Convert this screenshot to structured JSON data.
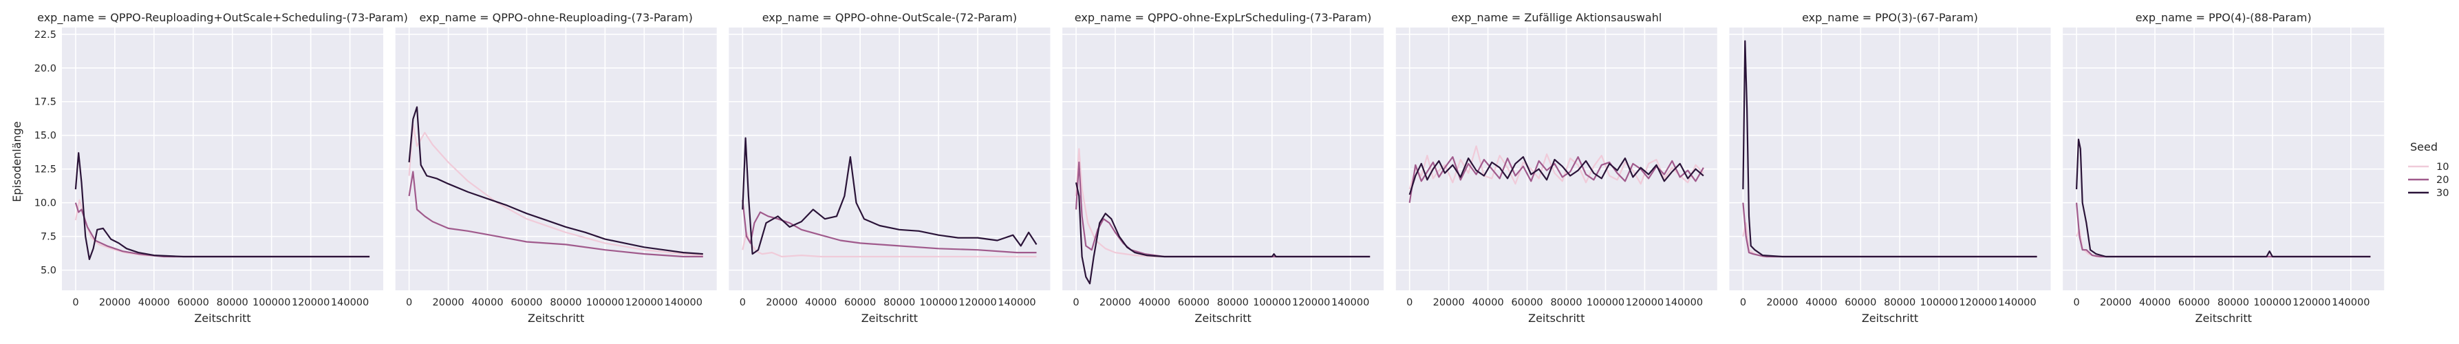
{
  "chart_data": {
    "type": "line",
    "ylabel": "Episodenlänge",
    "xlabel": "Zeitschritt",
    "xlim": [
      -7000,
      157000
    ],
    "ylim": [
      3.5,
      23.0
    ],
    "x_ticks": [
      0,
      20000,
      40000,
      60000,
      80000,
      100000,
      120000,
      140000
    ],
    "x_tick_labels": [
      "0",
      "20000",
      "40000",
      "60000",
      "80000",
      "100000",
      "120000",
      "140000"
    ],
    "y_ticks": [
      5.0,
      7.5,
      10.0,
      12.5,
      15.0,
      17.5,
      20.0,
      22.5
    ],
    "y_tick_labels": [
      "5.0",
      "7.5",
      "10.0",
      "12.5",
      "15.0",
      "17.5",
      "20.0",
      "22.5"
    ],
    "grid": true,
    "legend": {
      "title": "Seed",
      "placement": "right",
      "entries": [
        {
          "label": "10",
          "color": "#f0cbd9"
        },
        {
          "label": "20",
          "color": "#a05a8c"
        },
        {
          "label": "30",
          "color": "#2a1338"
        }
      ]
    },
    "panels": [
      {
        "title": "exp_name = QPPO-Reuploading+OutScale+Scheduling-(73-Param)",
        "series": [
          {
            "name": "10",
            "x": [
              0,
              2000,
              5000,
              8000,
              12000,
              18000,
              25000,
              35000,
              50000,
              80000,
              150000
            ],
            "y": [
              8.7,
              10.2,
              8.6,
              7.4,
              6.9,
              6.6,
              6.3,
              6.1,
              6.0,
              6.0,
              6.0
            ]
          },
          {
            "name": "20",
            "x": [
              0,
              1500,
              3000,
              6000,
              10000,
              16000,
              24000,
              32000,
              45000,
              80000,
              150000
            ],
            "y": [
              10.0,
              9.3,
              9.5,
              8.2,
              7.2,
              6.8,
              6.4,
              6.2,
              6.0,
              6.0,
              6.0
            ]
          },
          {
            "name": "30",
            "x": [
              0,
              1500,
              3000,
              5000,
              7000,
              9000,
              11000,
              14000,
              18000,
              22000,
              26000,
              32000,
              40000,
              55000,
              150000
            ],
            "y": [
              11.0,
              13.7,
              11.5,
              7.5,
              5.8,
              6.6,
              8.0,
              8.1,
              7.3,
              7.0,
              6.6,
              6.3,
              6.1,
              6.0,
              6.0
            ]
          }
        ]
      },
      {
        "title": "exp_name = QPPO-ohne-Reuploading-(73-Param)",
        "series": [
          {
            "name": "10",
            "x": [
              0,
              2000,
              4000,
              8000,
              12000,
              20000,
              30000,
              45000,
              60000,
              80000,
              100000,
              120000,
              140000,
              150000
            ],
            "y": [
              12.0,
              15.8,
              14.2,
              15.2,
              14.3,
              13.0,
              11.6,
              10.0,
              8.8,
              7.8,
              7.0,
              6.5,
              6.2,
              6.1
            ]
          },
          {
            "name": "20",
            "x": [
              0,
              2000,
              4000,
              8000,
              12000,
              20000,
              30000,
              45000,
              60000,
              80000,
              100000,
              120000,
              140000,
              150000
            ],
            "y": [
              10.5,
              12.3,
              9.5,
              9.0,
              8.6,
              8.1,
              7.9,
              7.5,
              7.1,
              6.9,
              6.5,
              6.2,
              6.0,
              6.0
            ]
          },
          {
            "name": "30",
            "x": [
              0,
              2000,
              4000,
              6000,
              9000,
              14000,
              20000,
              30000,
              40000,
              50000,
              60000,
              70000,
              80000,
              90000,
              100000,
              110000,
              120000,
              130000,
              140000,
              150000
            ],
            "y": [
              13.0,
              16.2,
              17.1,
              12.8,
              12.0,
              11.8,
              11.4,
              10.8,
              10.3,
              9.8,
              9.2,
              8.7,
              8.2,
              7.8,
              7.3,
              7.0,
              6.7,
              6.5,
              6.3,
              6.2
            ]
          }
        ]
      },
      {
        "title": "exp_name = QPPO-ohne-OutScale-(72-Param)",
        "series": [
          {
            "name": "10",
            "x": [
              0,
              2000,
              4000,
              7000,
              10000,
              15000,
              20000,
              30000,
              40000,
              60000,
              80000,
              100000,
              120000,
              140000,
              150000
            ],
            "y": [
              6.5,
              7.8,
              7.0,
              6.4,
              6.2,
              6.3,
              6.0,
              6.1,
              6.0,
              6.0,
              6.0,
              6.0,
              6.0,
              6.0,
              6.0
            ]
          },
          {
            "name": "20",
            "x": [
              0,
              2000,
              4000,
              6000,
              9000,
              13000,
              18000,
              24000,
              30000,
              40000,
              50000,
              60000,
              70000,
              80000,
              100000,
              120000,
              140000,
              150000
            ],
            "y": [
              10.2,
              7.5,
              7.0,
              8.5,
              9.3,
              9.0,
              8.8,
              8.5,
              8.0,
              7.6,
              7.2,
              7.0,
              6.9,
              6.8,
              6.6,
              6.5,
              6.3,
              6.3
            ]
          },
          {
            "name": "30",
            "x": [
              0,
              1500,
              3000,
              5000,
              8000,
              12000,
              18000,
              24000,
              30000,
              36000,
              42000,
              48000,
              52000,
              55000,
              58000,
              62000,
              70000,
              80000,
              90000,
              100000,
              110000,
              120000,
              130000,
              138000,
              142000,
              146000,
              150000
            ],
            "y": [
              9.5,
              14.8,
              10.5,
              6.2,
              6.5,
              8.5,
              9.0,
              8.2,
              8.6,
              9.5,
              8.8,
              9.0,
              10.5,
              13.4,
              10.0,
              8.8,
              8.3,
              8.0,
              7.9,
              7.6,
              7.4,
              7.4,
              7.2,
              7.6,
              6.8,
              7.8,
              6.9
            ]
          }
        ]
      },
      {
        "title": "exp_name = QPPO-ohne-ExpLrScheduling-(73-Param)",
        "series": [
          {
            "name": "10",
            "x": [
              0,
              1500,
              3000,
              6000,
              10000,
              15000,
              20000,
              30000,
              40000,
              60000,
              150000
            ],
            "y": [
              10.5,
              14.0,
              11.0,
              8.5,
              7.2,
              6.6,
              6.3,
              6.1,
              6.0,
              6.0,
              6.0
            ]
          },
          {
            "name": "20",
            "x": [
              0,
              1500,
              3000,
              5000,
              8000,
              11000,
              14000,
              17000,
              20000,
              24000,
              28000,
              35000,
              45000,
              60000,
              150000
            ],
            "y": [
              9.5,
              13.0,
              9.0,
              6.8,
              6.5,
              8.0,
              8.8,
              8.5,
              7.8,
              7.0,
              6.5,
              6.2,
              6.0,
              6.0,
              6.0
            ]
          },
          {
            "name": "30",
            "x": [
              0,
              1500,
              3000,
              5000,
              7000,
              9000,
              12000,
              15000,
              18000,
              22000,
              26000,
              30000,
              36000,
              45000,
              60000,
              100000,
              101000,
              102000,
              150000
            ],
            "y": [
              11.5,
              10.5,
              6.0,
              4.5,
              4.0,
              6.0,
              8.5,
              9.2,
              8.8,
              7.5,
              6.7,
              6.3,
              6.1,
              6.0,
              6.0,
              6.0,
              6.2,
              6.0,
              6.0
            ]
          }
        ]
      },
      {
        "title": "exp_name = Zufällige Aktionsauswahl",
        "series": [
          {
            "name": "10",
            "x": [
              0,
              3000,
              6000,
              9000,
              12000,
              15000,
              18000,
              22000,
              26000,
              30000,
              34000,
              38000,
              42000,
              46000,
              50000,
              54000,
              58000,
              62000,
              66000,
              70000,
              74000,
              78000,
              82000,
              86000,
              90000,
              94000,
              98000,
              102000,
              106000,
              110000,
              114000,
              118000,
              122000,
              126000,
              130000,
              134000,
              138000,
              142000,
              146000,
              150000
            ],
            "y": [
              11.0,
              12.5,
              12.0,
              13.5,
              11.8,
              12.4,
              12.8,
              11.5,
              13.2,
              12.2,
              14.2,
              12.0,
              11.8,
              13.5,
              12.6,
              11.4,
              13.0,
              12.5,
              11.8,
              13.6,
              12.2,
              11.6,
              13.3,
              12.8,
              11.5,
              12.7,
              13.5,
              12.0,
              11.7,
              13.0,
              12.4,
              11.4,
              12.9,
              13.2,
              11.8,
              12.6,
              12.0,
              11.5,
              12.8,
              12.2
            ]
          },
          {
            "name": "20",
            "x": [
              0,
              3000,
              6000,
              9000,
              12000,
              15000,
              18000,
              22000,
              26000,
              30000,
              34000,
              38000,
              42000,
              46000,
              50000,
              54000,
              58000,
              62000,
              66000,
              70000,
              74000,
              78000,
              82000,
              86000,
              90000,
              94000,
              98000,
              102000,
              106000,
              110000,
              114000,
              118000,
              122000,
              126000,
              130000,
              134000,
              138000,
              142000,
              146000,
              150000
            ],
            "y": [
              10.0,
              12.8,
              11.6,
              12.3,
              13.0,
              11.9,
              12.6,
              13.4,
              11.7,
              12.9,
              12.1,
              13.2,
              12.5,
              11.8,
              13.3,
              12.0,
              12.7,
              11.6,
              13.1,
              12.4,
              12.9,
              11.9,
              12.3,
              13.4,
              12.1,
              11.7,
              12.8,
              13.0,
              12.2,
              11.6,
              12.9,
              12.5,
              11.8,
              12.7,
              12.1,
              13.1,
              11.9,
              12.4,
              11.6,
              12.6
            ]
          },
          {
            "name": "30",
            "x": [
              0,
              3000,
              6000,
              9000,
              12000,
              15000,
              18000,
              22000,
              26000,
              30000,
              34000,
              38000,
              42000,
              46000,
              50000,
              54000,
              58000,
              62000,
              66000,
              70000,
              74000,
              78000,
              82000,
              86000,
              90000,
              94000,
              98000,
              102000,
              106000,
              110000,
              114000,
              118000,
              122000,
              126000,
              130000,
              134000,
              138000,
              142000,
              146000,
              150000
            ],
            "y": [
              10.6,
              12.0,
              12.9,
              11.7,
              12.5,
              13.1,
              12.2,
              12.8,
              11.9,
              13.3,
              12.4,
              12.0,
              13.0,
              12.6,
              11.8,
              12.9,
              13.4,
              12.1,
              12.5,
              11.7,
              13.2,
              12.7,
              12.0,
              12.4,
              13.1,
              12.2,
              11.8,
              12.9,
              12.4,
              13.3,
              11.9,
              12.6,
              12.1,
              12.8,
              11.6,
              12.3,
              12.9,
              11.8,
              12.5,
              12.0
            ]
          }
        ]
      },
      {
        "title": "exp_name = PPO(3)-(67-Param)",
        "series": [
          {
            "name": "10",
            "x": [
              0,
              1500,
              3000,
              6000,
              10000,
              15000,
              25000,
              150000
            ],
            "y": [
              7.5,
              8.5,
              6.5,
              6.2,
              6.0,
              6.0,
              6.0,
              6.0
            ]
          },
          {
            "name": "20",
            "x": [
              0,
              1500,
              3000,
              5000,
              8000,
              12000,
              20000,
              150000
            ],
            "y": [
              10.0,
              7.5,
              6.3,
              6.2,
              6.1,
              6.0,
              6.0,
              6.0
            ]
          },
          {
            "name": "30",
            "x": [
              0,
              1000,
              2000,
              3000,
              4000,
              6000,
              10000,
              20000,
              150000
            ],
            "y": [
              11.0,
              22.0,
              17.0,
              9.0,
              6.8,
              6.5,
              6.1,
              6.0,
              6.0
            ]
          }
        ]
      },
      {
        "title": "exp_name = PPO(4)-(88-Param)",
        "series": [
          {
            "name": "10",
            "x": [
              0,
              1500,
              3000,
              6000,
              10000,
              15000,
              25000,
              150000
            ],
            "y": [
              7.5,
              8.0,
              6.6,
              6.2,
              6.0,
              6.0,
              6.0,
              6.0
            ]
          },
          {
            "name": "20",
            "x": [
              0,
              1500,
              3000,
              5000,
              8000,
              12000,
              20000,
              150000
            ],
            "y": [
              10.0,
              7.5,
              6.5,
              6.5,
              6.1,
              6.0,
              6.0,
              6.0
            ]
          },
          {
            "name": "30",
            "x": [
              0,
              1000,
              2000,
              3000,
              5000,
              7000,
              10000,
              15000,
              25000,
              97000,
              98500,
              100000,
              150000
            ],
            "y": [
              11.0,
              14.7,
              14.0,
              10.0,
              8.5,
              6.5,
              6.2,
              6.0,
              6.0,
              6.0,
              6.4,
              6.0,
              6.0
            ]
          }
        ]
      }
    ]
  }
}
